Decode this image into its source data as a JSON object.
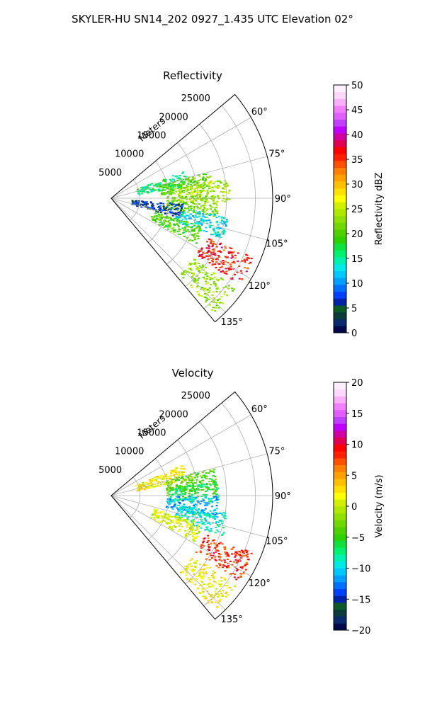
{
  "figure_title": "SKYLER-HU  SN14_202  0927_1.435 UTC Elevation 02°",
  "chart_data": [
    {
      "type": "heatmap",
      "projection": "polar-sector",
      "title": "Reflectivity",
      "radial_label": "Meters",
      "radial_ticks": [
        5000,
        10000,
        15000,
        20000,
        25000
      ],
      "radial_tick_labels": [
        "5000",
        "10000",
        "15000",
        "20000",
        "25000"
      ],
      "r_range": [
        0,
        28000
      ],
      "theta_range_deg": [
        50,
        140
      ],
      "angle_ticks_deg": [
        60,
        75,
        90,
        105,
        120,
        135
      ],
      "angle_tick_labels": [
        "60°",
        "75°",
        "90°",
        "105°",
        "120°",
        "135°"
      ],
      "grid": true,
      "colorbar": {
        "label": "Reflectivity dBZ",
        "range": [
          0,
          50
        ],
        "ticks": [
          0,
          5,
          10,
          15,
          20,
          25,
          30,
          35,
          40,
          45,
          50
        ],
        "tick_labels": [
          "0",
          "5",
          "10",
          "15",
          "20",
          "25",
          "30",
          "35",
          "40",
          "45",
          "50"
        ],
        "colors": [
          "#02094a",
          "#0a2a6b",
          "#0b3b3a",
          "#0a5a2a",
          "#0022a8",
          "#0040ff",
          "#0070ff",
          "#00a0ff",
          "#00c8ff",
          "#00e8e8",
          "#00f0b0",
          "#00f070",
          "#10e040",
          "#30d000",
          "#50d000",
          "#70d800",
          "#90e000",
          "#b0e800",
          "#d0f000",
          "#ffff00",
          "#ffe000",
          "#ffc000",
          "#ffa000",
          "#ff8000",
          "#ff5000",
          "#ff2000",
          "#ff0000",
          "#e00050",
          "#d000a0",
          "#c000ff",
          "#c040ff",
          "#e060ff",
          "#f080ff",
          "#f8b0f8",
          "#fcd8fc",
          "#ffeeff"
        ]
      },
      "echo_field": [
        {
          "az": 75,
          "r": 9000,
          "value": 16
        },
        {
          "az": 80,
          "r": 13000,
          "value": 21
        },
        {
          "az": 86,
          "r": 16000,
          "value": 24
        },
        {
          "az": 94,
          "r": 14000,
          "value": 22
        },
        {
          "az": 100,
          "r": 8000,
          "value": 6
        },
        {
          "az": 104,
          "r": 16000,
          "value": 13
        },
        {
          "az": 113,
          "r": 12000,
          "value": 20
        },
        {
          "az": 118,
          "r": 22000,
          "value": 36
        },
        {
          "az": 132,
          "r": 22000,
          "value": 23
        }
      ]
    },
    {
      "type": "heatmap",
      "projection": "polar-sector",
      "title": "Velocity",
      "radial_label": "Meters",
      "radial_ticks": [
        5000,
        10000,
        15000,
        20000,
        25000
      ],
      "radial_tick_labels": [
        "5000",
        "10000",
        "15000",
        "20000",
        "25000"
      ],
      "r_range": [
        0,
        28000
      ],
      "theta_range_deg": [
        50,
        140
      ],
      "angle_ticks_deg": [
        60,
        75,
        90,
        105,
        120,
        135
      ],
      "angle_tick_labels": [
        "60°",
        "75°",
        "90°",
        "105°",
        "120°",
        "135°"
      ],
      "grid": true,
      "colorbar": {
        "label": "Velocity (m/s)",
        "range": [
          -20,
          20
        ],
        "ticks": [
          -20,
          -15,
          -10,
          -5,
          0,
          5,
          10,
          15,
          20
        ],
        "tick_labels": [
          "−20",
          "−15",
          "−10",
          "−5",
          "0",
          "5",
          "10",
          "15",
          "20"
        ],
        "colors": [
          "#02094a",
          "#0a2a6b",
          "#0b3b3a",
          "#0a5a2a",
          "#0022a8",
          "#0040ff",
          "#0070ff",
          "#00a0ff",
          "#00c8ff",
          "#00e8e8",
          "#00f0b0",
          "#00f070",
          "#10e040",
          "#30d000",
          "#50d000",
          "#70d800",
          "#90e000",
          "#b0e800",
          "#d0f000",
          "#ffff00",
          "#ffe000",
          "#ffc000",
          "#ffa000",
          "#ff8000",
          "#ff5000",
          "#ff2000",
          "#ff0000",
          "#e00050",
          "#d000a0",
          "#c000ff",
          "#c040ff",
          "#e060ff",
          "#f080ff",
          "#f8b0f8",
          "#fcd8fc",
          "#ffeeff"
        ]
      },
      "echo_field": [
        {
          "az": 72,
          "r": 9000,
          "value": 2
        },
        {
          "az": 80,
          "r": 14000,
          "value": -4
        },
        {
          "az": 88,
          "r": 14000,
          "value": -6
        },
        {
          "az": 96,
          "r": 14000,
          "value": -11
        },
        {
          "az": 104,
          "r": 16000,
          "value": -9
        },
        {
          "az": 113,
          "r": 12000,
          "value": 1
        },
        {
          "az": 118,
          "r": 22000,
          "value": 8
        },
        {
          "az": 132,
          "r": 22000,
          "value": 2
        }
      ]
    }
  ]
}
